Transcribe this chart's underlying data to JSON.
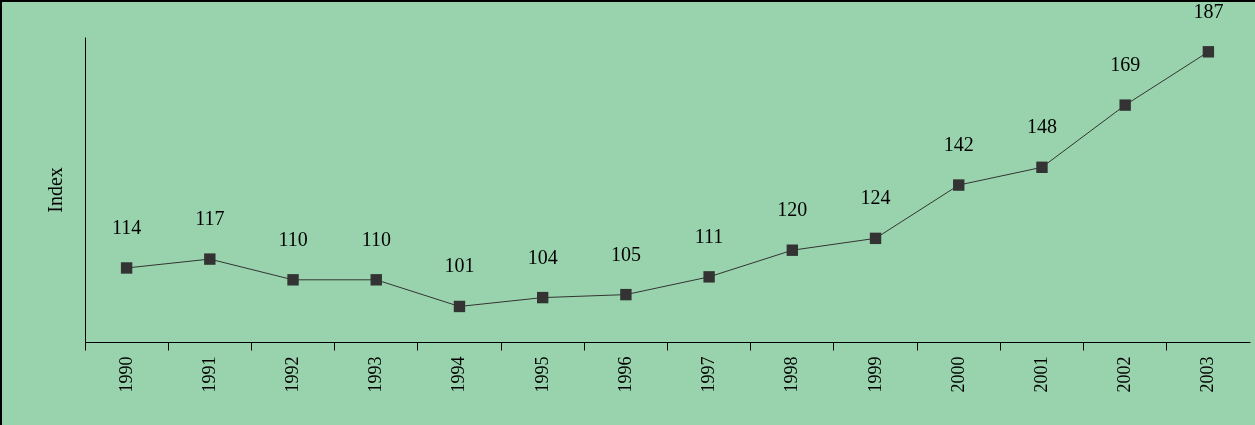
{
  "chart_data": {
    "type": "line",
    "ylabel": "Index",
    "categories": [
      "1990",
      "1991",
      "1992",
      "1993",
      "1994",
      "1995",
      "1996",
      "1997",
      "1998",
      "1999",
      "2000",
      "2001",
      "2002",
      "2003"
    ],
    "values": [
      114,
      117,
      110,
      110,
      101,
      104,
      105,
      111,
      120,
      124,
      142,
      148,
      169,
      187
    ],
    "color": "#333333",
    "marker": "square",
    "data_labels": true,
    "tick_labels": "x",
    "ylim": [
      89,
      192
    ]
  }
}
